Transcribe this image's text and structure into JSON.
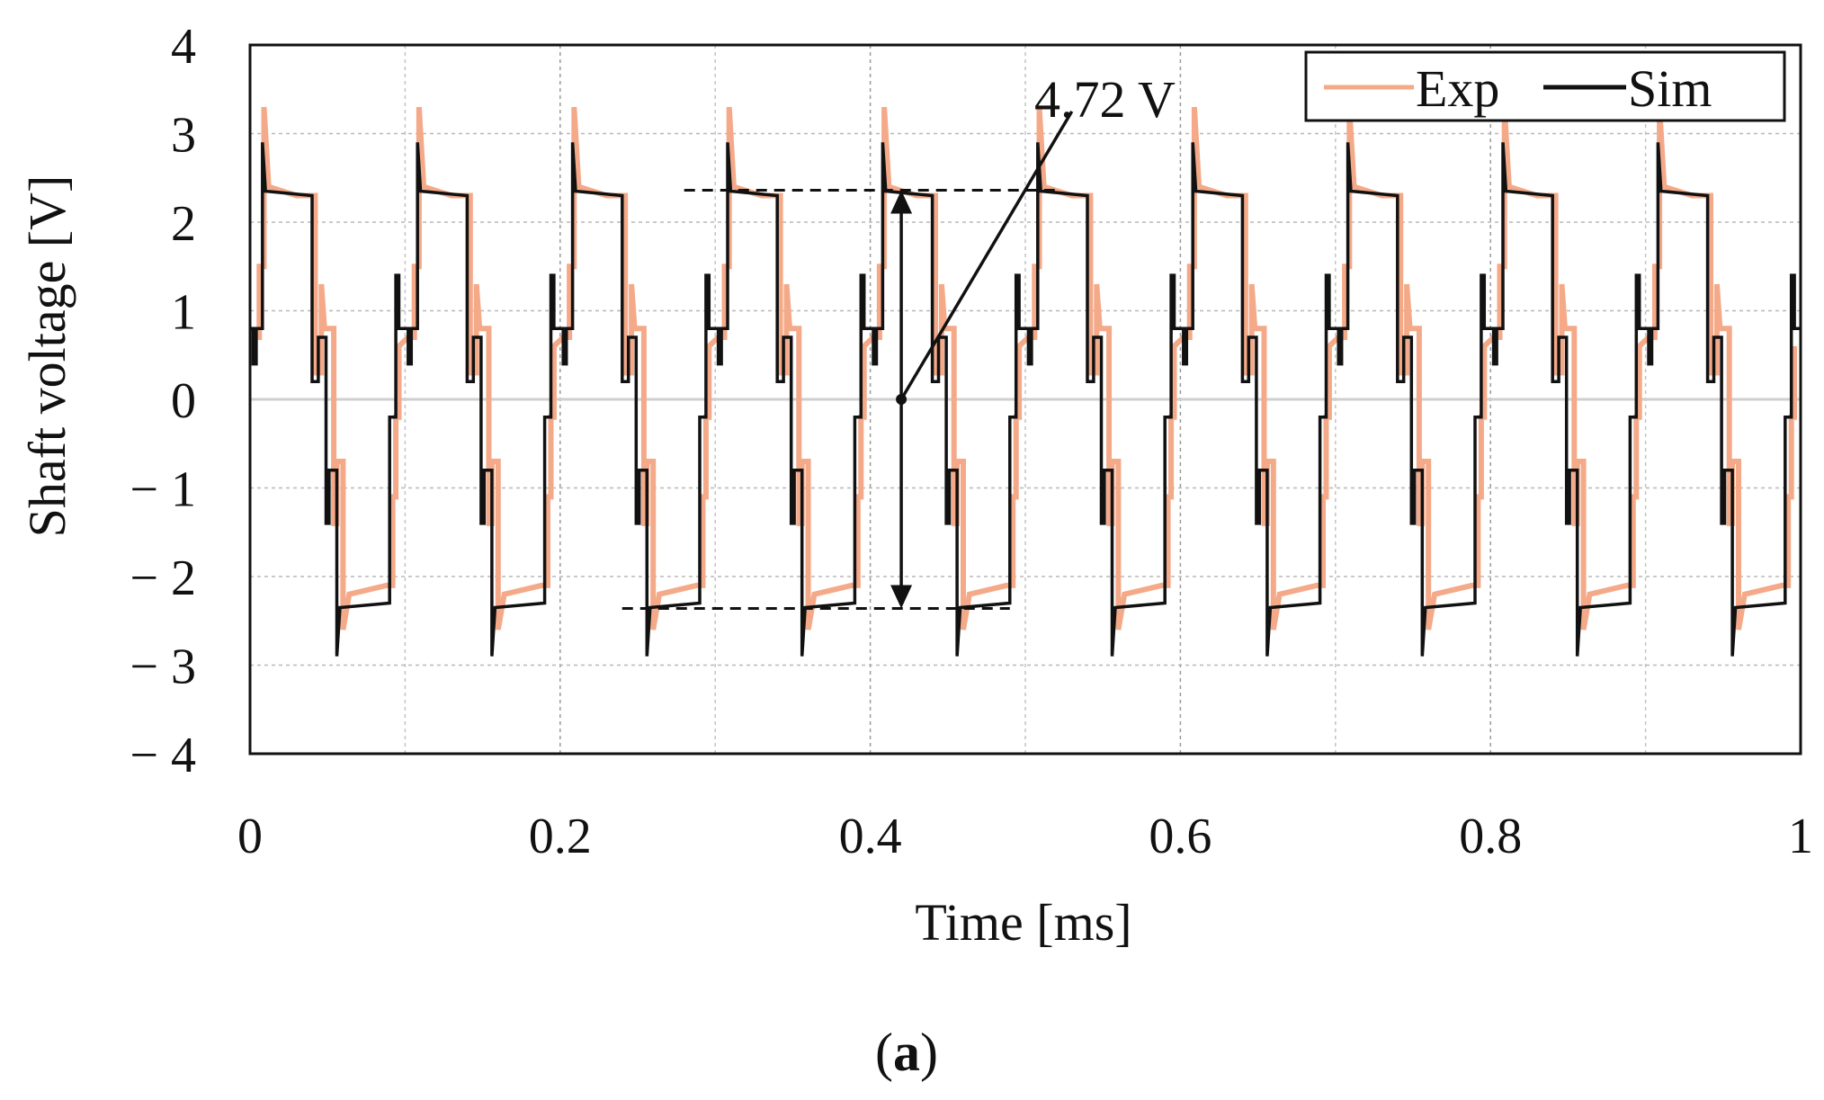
{
  "chart_data": {
    "type": "line",
    "title": "",
    "xlabel": "Time [ms]",
    "ylabel": "Shaft voltage [V]",
    "xlim": [
      0,
      1
    ],
    "ylim": [
      -4,
      4
    ],
    "grid": true,
    "legend_position": "top-right",
    "x_ticks": [
      0,
      0.2,
      0.4,
      0.6,
      0.8,
      1
    ],
    "x_tick_labels": [
      "0",
      "0.2",
      "0.4",
      "0.6",
      "0.8",
      "1"
    ],
    "y_ticks": [
      4,
      3,
      2,
      1,
      0,
      -1,
      -2,
      -3,
      -4
    ],
    "y_tick_labels": [
      "4",
      "3",
      "2",
      "1",
      "0",
      "− 1",
      "− 2",
      "− 3",
      "− 4"
    ],
    "period_ms": 0.1,
    "periods": 10,
    "series": [
      {
        "name": "Exp",
        "color": "#f4a988",
        "shift_ms": 0.002,
        "cycle": [
          [
            0.0,
            0.7
          ],
          [
            0.004,
            0.7
          ],
          [
            0.004,
            1.5
          ],
          [
            0.007,
            1.5
          ],
          [
            0.007,
            3.3
          ],
          [
            0.01,
            2.4
          ],
          [
            0.028,
            2.3
          ],
          [
            0.04,
            2.3
          ],
          [
            0.04,
            0.3
          ],
          [
            0.044,
            0.3
          ],
          [
            0.044,
            1.3
          ],
          [
            0.046,
            0.8
          ],
          [
            0.052,
            0.8
          ],
          [
            0.052,
            -1.4
          ],
          [
            0.054,
            -1.4
          ],
          [
            0.054,
            -0.7
          ],
          [
            0.058,
            -0.7
          ],
          [
            0.058,
            -2.6
          ],
          [
            0.062,
            -2.2
          ],
          [
            0.086,
            -2.1
          ],
          [
            0.09,
            -2.1
          ],
          [
            0.09,
            -1.1
          ],
          [
            0.092,
            -1.1
          ],
          [
            0.092,
            -0.2
          ],
          [
            0.094,
            -0.2
          ],
          [
            0.094,
            0.6
          ],
          [
            0.1,
            0.7
          ]
        ]
      },
      {
        "name": "Sim",
        "color": "#111111",
        "shift_ms": 0.0,
        "cycle": [
          [
            0.0,
            0.8
          ],
          [
            0.002,
            0.8
          ],
          [
            0.002,
            0.4
          ],
          [
            0.004,
            0.4
          ],
          [
            0.004,
            0.8
          ],
          [
            0.008,
            0.8
          ],
          [
            0.008,
            2.9
          ],
          [
            0.01,
            2.35
          ],
          [
            0.04,
            2.3
          ],
          [
            0.04,
            0.2
          ],
          [
            0.044,
            0.2
          ],
          [
            0.044,
            0.7
          ],
          [
            0.049,
            0.7
          ],
          [
            0.049,
            -1.4
          ],
          [
            0.051,
            -1.4
          ],
          [
            0.051,
            -0.8
          ],
          [
            0.056,
            -0.8
          ],
          [
            0.056,
            -2.9
          ],
          [
            0.058,
            -2.35
          ],
          [
            0.09,
            -2.3
          ],
          [
            0.09,
            -0.2
          ],
          [
            0.094,
            -0.2
          ],
          [
            0.094,
            1.4
          ],
          [
            0.096,
            1.4
          ],
          [
            0.096,
            0.8
          ],
          [
            0.1,
            0.8
          ]
        ]
      }
    ],
    "reference_lines": [
      {
        "y": 2.36,
        "x_start": 0.28,
        "x_end": 0.52,
        "style": "dashed"
      },
      {
        "y": -2.36,
        "x_start": 0.24,
        "x_end": 0.49,
        "style": "dashed"
      }
    ],
    "measurement_arrow": {
      "x": 0.42,
      "y_top": 2.36,
      "y_bottom": -2.36
    },
    "annotation": {
      "text": "4.72 V",
      "point_x": 0.42,
      "point_y": 0,
      "label_x": 0.53,
      "label_y": 3.25
    }
  },
  "caption": {
    "open": "(",
    "label": "a",
    "close": ")"
  }
}
